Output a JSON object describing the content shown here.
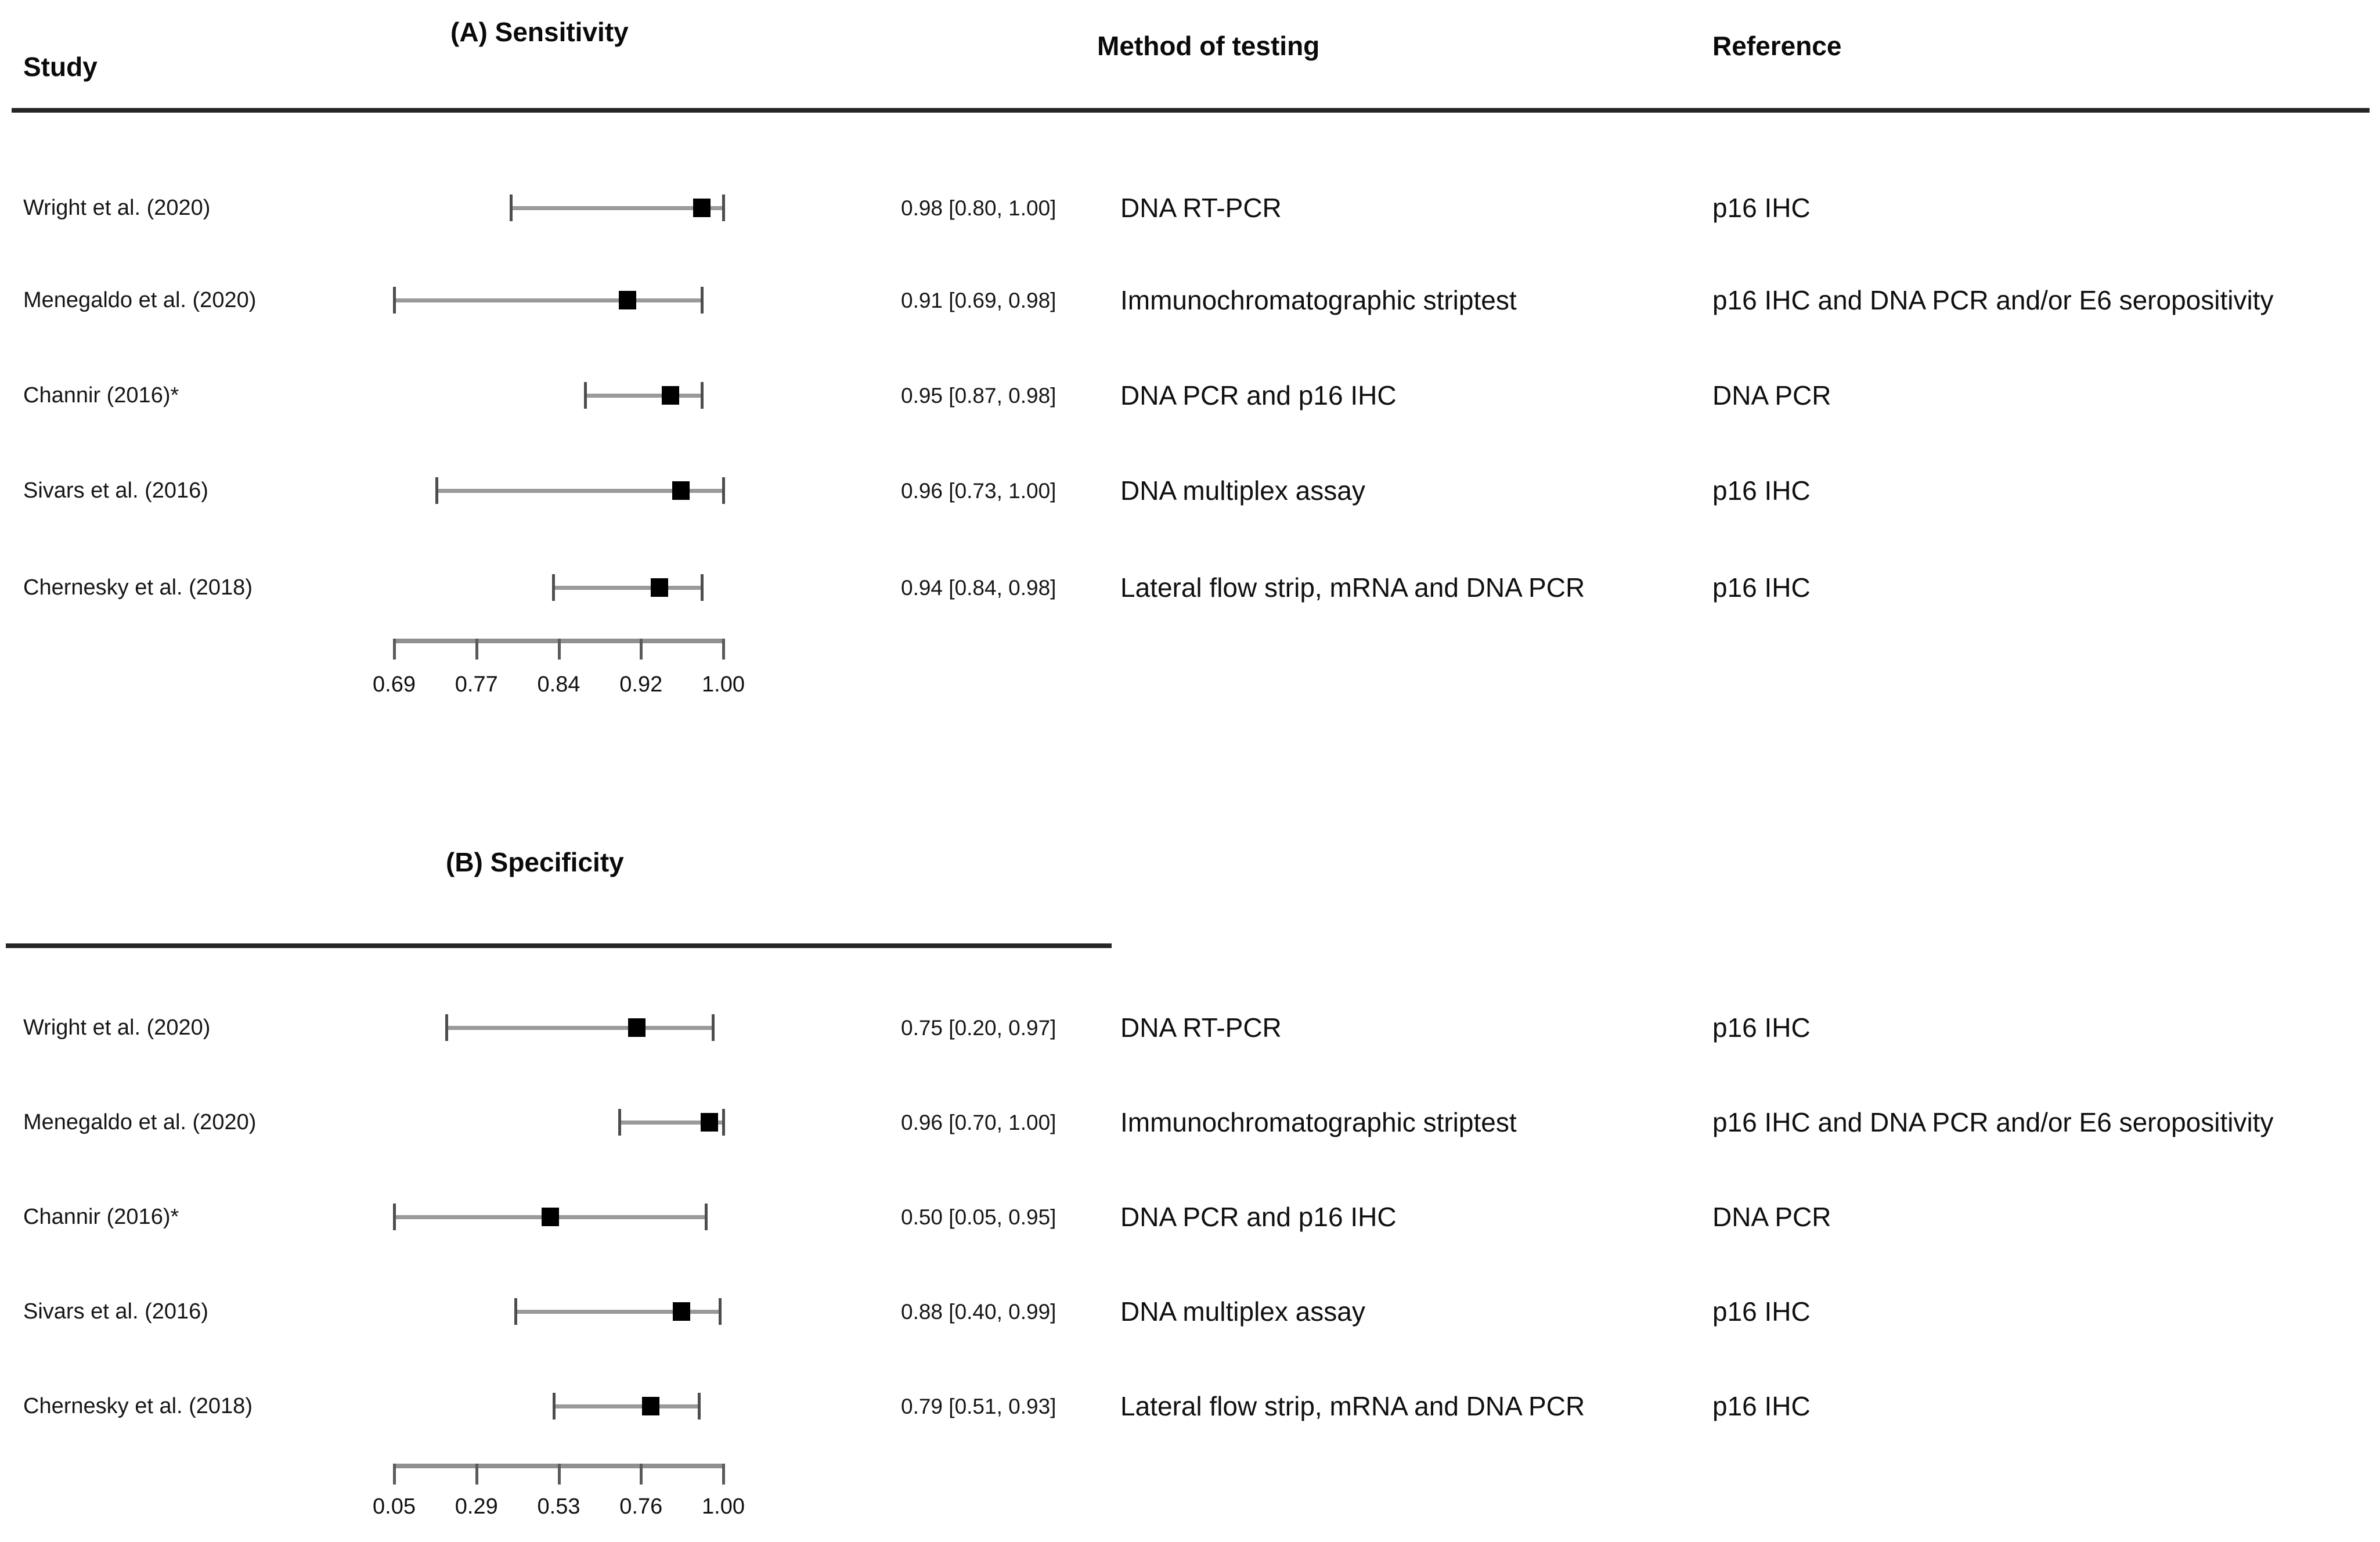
{
  "headers": {
    "study": "Study",
    "method": "Method of testing",
    "reference": "Reference"
  },
  "colors": {
    "background": "#ffffff",
    "text": "#141414",
    "rule": "#262626",
    "ci_line": "#9a9a9a",
    "ci_whisker": "#4d4d4d",
    "marker": "#000000",
    "axis_bar": "#909090",
    "axis_tick": "#5a5a5a"
  },
  "chart_data": [
    {
      "type": "scatter",
      "variant": "forest-plot-with-ci-error-bars",
      "panel": "A",
      "title": "(A) Sensitivity",
      "axis": {
        "min": 0.69,
        "max": 1.0,
        "ticks": [
          0.69,
          0.77,
          0.84,
          0.92,
          1.0
        ],
        "tick_labels": [
          "0.69",
          "0.77",
          "0.84",
          "0.92",
          "1.00"
        ]
      },
      "rows": [
        {
          "study": "Wright et al. (2020)",
          "estimate": 0.98,
          "ci_low": 0.8,
          "ci_high": 1.0,
          "label": "0.98 [0.80, 1.00]",
          "method": "DNA RT-PCR",
          "reference": "p16 IHC"
        },
        {
          "study": "Menegaldo et al. (2020)",
          "estimate": 0.91,
          "ci_low": 0.69,
          "ci_high": 0.98,
          "label": "0.91 [0.69, 0.98]",
          "method": "Immunochromatographic striptest",
          "reference": "p16 IHC and DNA PCR and/or E6 seropositivity"
        },
        {
          "study": "Channir (2016)*",
          "estimate": 0.95,
          "ci_low": 0.87,
          "ci_high": 0.98,
          "label": "0.95 [0.87, 0.98]",
          "method": "DNA PCR and p16 IHC",
          "reference": "DNA PCR"
        },
        {
          "study": "Sivars et al. (2016)",
          "estimate": 0.96,
          "ci_low": 0.73,
          "ci_high": 1.0,
          "label": "0.96 [0.73, 1.00]",
          "method": "DNA multiplex assay",
          "reference": "p16 IHC"
        },
        {
          "study": "Chernesky et al. (2018)",
          "estimate": 0.94,
          "ci_low": 0.84,
          "ci_high": 0.98,
          "label": "0.94 [0.84, 0.98]",
          "method": "Lateral flow strip, mRNA and DNA PCR",
          "reference": "p16 IHC"
        }
      ]
    },
    {
      "type": "scatter",
      "variant": "forest-plot-with-ci-error-bars",
      "panel": "B",
      "title": "(B) Specificity",
      "axis": {
        "min": 0.05,
        "max": 1.0,
        "ticks": [
          0.05,
          0.29,
          0.53,
          0.76,
          1.0
        ],
        "tick_labels": [
          "0.05",
          "0.29",
          "0.53",
          "0.76",
          "1.00"
        ]
      },
      "rows": [
        {
          "study": "Wright et al. (2020)",
          "estimate": 0.75,
          "ci_low": 0.2,
          "ci_high": 0.97,
          "label": "0.75 [0.20, 0.97]",
          "method": "DNA RT-PCR",
          "reference": "p16 IHC"
        },
        {
          "study": "Menegaldo et al. (2020)",
          "estimate": 0.96,
          "ci_low": 0.7,
          "ci_high": 1.0,
          "label": "0.96 [0.70, 1.00]",
          "method": "Immunochromatographic striptest",
          "reference": "p16 IHC and DNA PCR and/or E6 seropositivity"
        },
        {
          "study": "Channir (2016)*",
          "estimate": 0.5,
          "ci_low": 0.05,
          "ci_high": 0.95,
          "label": "0.50 [0.05, 0.95]",
          "method": "DNA PCR and p16 IHC",
          "reference": "DNA PCR"
        },
        {
          "study": "Sivars et al. (2016)",
          "estimate": 0.88,
          "ci_low": 0.4,
          "ci_high": 0.99,
          "label": "0.88 [0.40, 0.99]",
          "method": "DNA multiplex assay",
          "reference": "p16 IHC"
        },
        {
          "study": "Chernesky et al. (2018)",
          "estimate": 0.79,
          "ci_low": 0.51,
          "ci_high": 0.93,
          "label": "0.79 [0.51, 0.93]",
          "method": "Lateral flow strip, mRNA and DNA PCR",
          "reference": "p16 IHC"
        }
      ]
    }
  ]
}
